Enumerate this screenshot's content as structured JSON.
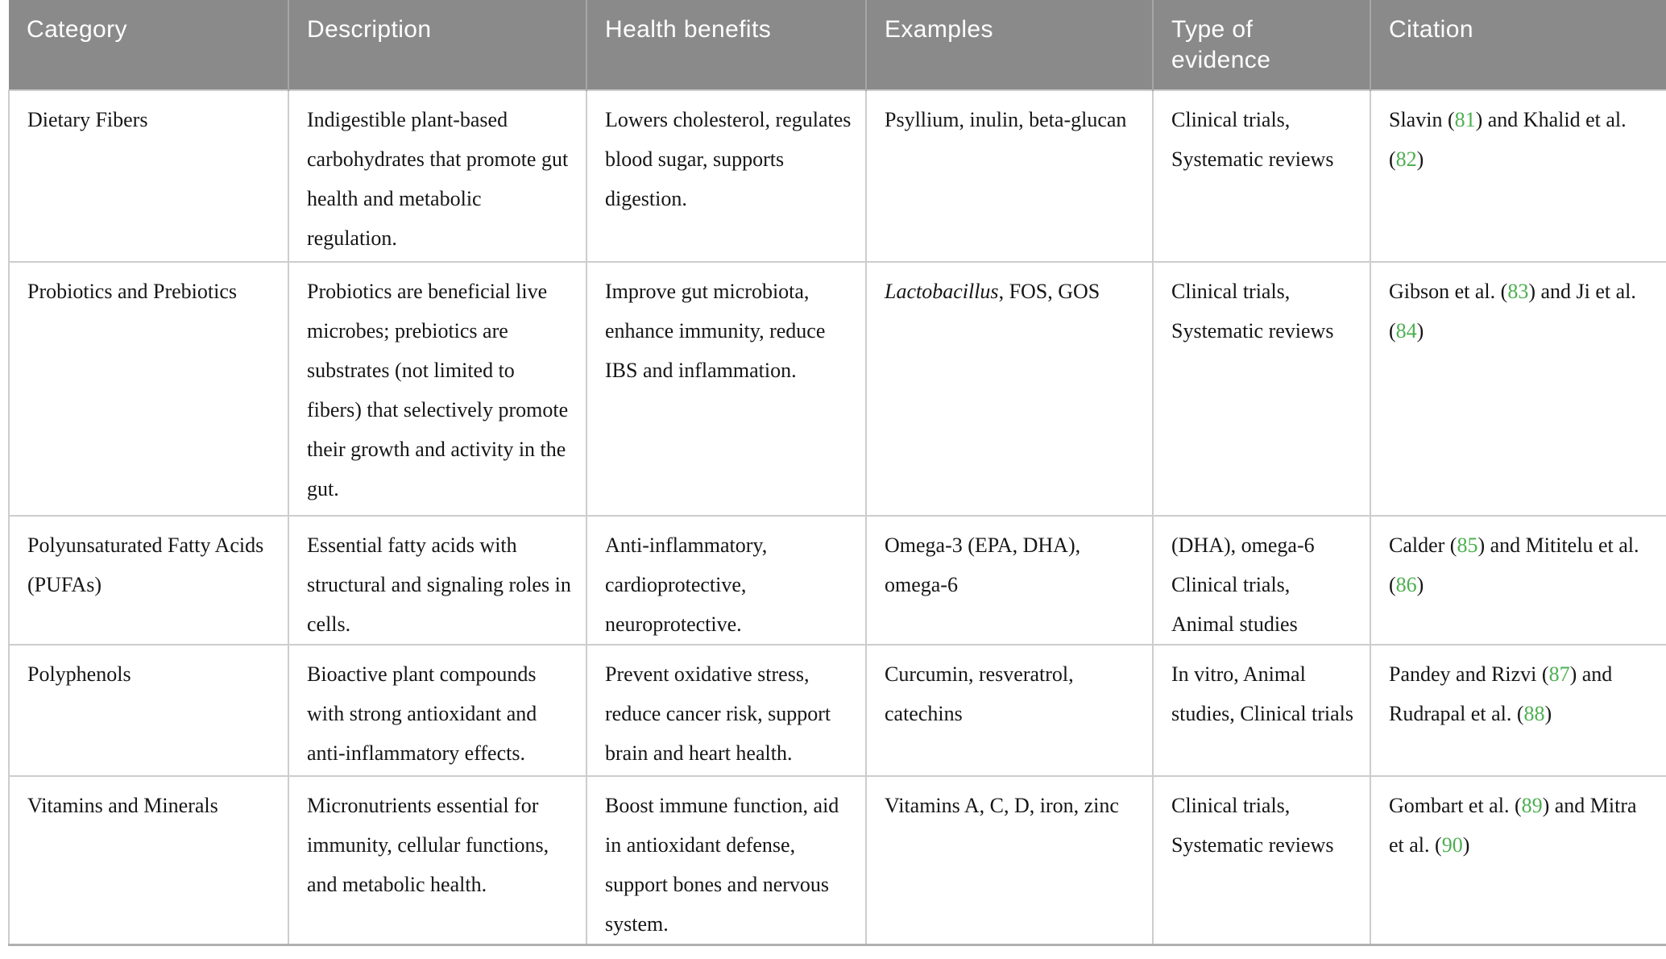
{
  "colors": {
    "header_bg": "#8a8a8a",
    "header_text": "#ffffff",
    "body_text": "#161616",
    "citation_green": "#4caf50",
    "grid_border": "#cdcdcd",
    "header_divider": "#a6a6a6"
  },
  "table": {
    "columns": [
      {
        "label": "Category"
      },
      {
        "label": "Description"
      },
      {
        "label": "Health benefits"
      },
      {
        "label": "Examples"
      },
      {
        "label": "Type of evidence"
      },
      {
        "label": "Citation"
      }
    ],
    "rows": [
      {
        "category": "Dietary Fibers",
        "description": "Indigestible plant-based carbohydrates that promote gut health and metabolic regulation.",
        "health_benefits": "Lowers cholesterol, regulates blood sugar, supports digestion.",
        "examples": [
          {
            "t": "Psyllium, inulin, beta-glucan"
          }
        ],
        "type_of_evidence": "Clinical trials, Systematic reviews",
        "citation": [
          {
            "t": "Slavin ("
          },
          {
            "t": "81",
            "style": "green"
          },
          {
            "t": ") and Khalid et al. ("
          },
          {
            "t": "82",
            "style": "green"
          },
          {
            "t": ")"
          }
        ]
      },
      {
        "category": "Probiotics and Prebiotics",
        "description": "Probiotics are beneficial live microbes; prebiotics are substrates (not limited to fibers) that selectively promote their growth and activity in the gut.",
        "health_benefits": "Improve gut microbiota, enhance immunity, reduce IBS and inflammation.",
        "examples": [
          {
            "t": "Lactobacillus",
            "style": "italic"
          },
          {
            "t": ", FOS, GOS"
          }
        ],
        "type_of_evidence": "Clinical trials, Systematic reviews",
        "citation": [
          {
            "t": "Gibson et al. ("
          },
          {
            "t": "83",
            "style": "green"
          },
          {
            "t": ") and Ji et al. ("
          },
          {
            "t": "84",
            "style": "green"
          },
          {
            "t": ")"
          }
        ]
      },
      {
        "category": "Polyunsaturated Fatty Acids (PUFAs)",
        "description": "Essential fatty acids with structural and signaling roles in cells.",
        "health_benefits": "Anti-inflammatory, cardioprotective, neuroprotective.",
        "examples": [
          {
            "t": "Omega-3 (EPA, DHA), omega-6"
          }
        ],
        "type_of_evidence": "(DHA), omega-6 Clinical trials, Animal studies",
        "citation": [
          {
            "t": "Calder ("
          },
          {
            "t": "85",
            "style": "green"
          },
          {
            "t": ") and Mititelu et al. ("
          },
          {
            "t": "86",
            "style": "green"
          },
          {
            "t": ")"
          }
        ]
      },
      {
        "category": "Polyphenols",
        "description": "Bioactive plant compounds with strong antioxidant and anti-inflammatory effects.",
        "health_benefits": "Prevent oxidative stress, reduce cancer risk, support brain and heart health.",
        "examples": [
          {
            "t": "Curcumin, resveratrol, catechins"
          }
        ],
        "type_of_evidence": "In vitro, Animal studies, Clinical trials",
        "citation": [
          {
            "t": "Pandey and Rizvi ("
          },
          {
            "t": "87",
            "style": "green"
          },
          {
            "t": ") and Rudrapal et al. ("
          },
          {
            "t": "88",
            "style": "green"
          },
          {
            "t": ")"
          }
        ]
      },
      {
        "category": "Vitamins and Minerals",
        "description": "Micronutrients essential for immunity, cellular functions, and metabolic health.",
        "health_benefits": "Boost immune function, aid in antioxidant defense, support bones and nervous system.",
        "examples": [
          {
            "t": "Vitamins A, C, D, iron, zinc"
          }
        ],
        "type_of_evidence": "Clinical trials, Systematic reviews",
        "citation": [
          {
            "t": "Gombart et al. ("
          },
          {
            "t": "89",
            "style": "green"
          },
          {
            "t": ") and Mitra et al. ("
          },
          {
            "t": "90",
            "style": "green"
          },
          {
            "t": ")"
          }
        ]
      }
    ]
  }
}
